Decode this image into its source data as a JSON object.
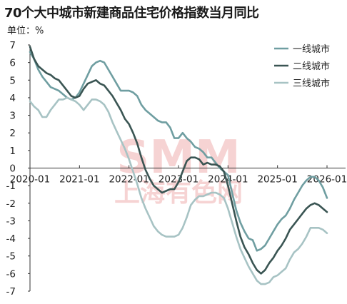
{
  "chart_data": {
    "type": "line",
    "title": "70个大中城市新建商品住宅价格指数当月同比",
    "unit_label": "单位：%",
    "xlabel": "",
    "ylabel": "",
    "ylim": [
      -7,
      7
    ],
    "y_ticks": [
      7,
      6,
      5,
      4,
      3,
      2,
      1,
      0,
      -1,
      -2,
      -3,
      -4,
      -5,
      -6,
      -7
    ],
    "x_ticks": [
      "2020-01",
      "2021-01",
      "2022-01",
      "2023-01",
      "2024-01",
      "2025-01",
      "2026-01"
    ],
    "grid": false,
    "legend_position": "top-right",
    "watermark": {
      "top": "SMM",
      "bottom": "上海有色网"
    },
    "series": [
      {
        "name": "一线城市",
        "color": "#6f9ea1",
        "values": [
          {
            "x": "2020-01",
            "y": 6.6
          },
          {
            "x": "2020-02",
            "y": 6.2
          },
          {
            "x": "2020-03",
            "y": 5.6
          },
          {
            "x": "2020-04",
            "y": 5.2
          },
          {
            "x": "2020-05",
            "y": 4.9
          },
          {
            "x": "2020-06",
            "y": 4.6
          },
          {
            "x": "2020-07",
            "y": 4.5
          },
          {
            "x": "2020-08",
            "y": 4.4
          },
          {
            "x": "2020-09",
            "y": 4.2
          },
          {
            "x": "2020-10",
            "y": 4.0
          },
          {
            "x": "2020-11",
            "y": 3.9
          },
          {
            "x": "2020-12",
            "y": 4.0
          },
          {
            "x": "2021-01",
            "y": 4.3
          },
          {
            "x": "2021-02",
            "y": 4.8
          },
          {
            "x": "2021-03",
            "y": 5.3
          },
          {
            "x": "2021-04",
            "y": 5.8
          },
          {
            "x": "2021-05",
            "y": 6.0
          },
          {
            "x": "2021-06",
            "y": 6.1
          },
          {
            "x": "2021-07",
            "y": 6.0
          },
          {
            "x": "2021-08",
            "y": 5.6
          },
          {
            "x": "2021-09",
            "y": 5.2
          },
          {
            "x": "2021-10",
            "y": 4.8
          },
          {
            "x": "2021-11",
            "y": 4.4
          },
          {
            "x": "2021-12",
            "y": 4.4
          },
          {
            "x": "2022-01",
            "y": 4.4
          },
          {
            "x": "2022-02",
            "y": 4.3
          },
          {
            "x": "2022-03",
            "y": 4.1
          },
          {
            "x": "2022-04",
            "y": 3.6
          },
          {
            "x": "2022-05",
            "y": 3.3
          },
          {
            "x": "2022-06",
            "y": 3.1
          },
          {
            "x": "2022-07",
            "y": 2.9
          },
          {
            "x": "2022-08",
            "y": 2.7
          },
          {
            "x": "2022-09",
            "y": 2.6
          },
          {
            "x": "2022-10",
            "y": 2.6
          },
          {
            "x": "2022-11",
            "y": 2.3
          },
          {
            "x": "2022-12",
            "y": 1.7
          },
          {
            "x": "2023-01",
            "y": 1.7
          },
          {
            "x": "2023-02",
            "y": 2.0
          },
          {
            "x": "2023-03",
            "y": 1.7
          },
          {
            "x": "2023-04",
            "y": 1.5
          },
          {
            "x": "2023-05",
            "y": 1.2
          },
          {
            "x": "2023-06",
            "y": 1.1
          },
          {
            "x": "2023-07",
            "y": 0.9
          },
          {
            "x": "2023-08",
            "y": 0.6
          },
          {
            "x": "2023-09",
            "y": 0.6
          },
          {
            "x": "2023-10",
            "y": 0.3
          },
          {
            "x": "2023-11",
            "y": 0.0
          },
          {
            "x": "2023-12",
            "y": -0.2
          },
          {
            "x": "2024-01",
            "y": -0.4
          },
          {
            "x": "2024-02",
            "y": -1.4
          },
          {
            "x": "2024-03",
            "y": -2.4
          },
          {
            "x": "2024-04",
            "y": -3.1
          },
          {
            "x": "2024-05",
            "y": -3.6
          },
          {
            "x": "2024-06",
            "y": -4.0
          },
          {
            "x": "2024-07",
            "y": -4.1
          },
          {
            "x": "2024-08",
            "y": -4.7
          },
          {
            "x": "2024-09",
            "y": -4.6
          },
          {
            "x": "2024-10",
            "y": -4.4
          },
          {
            "x": "2024-11",
            "y": -4.0
          },
          {
            "x": "2024-12",
            "y": -3.6
          },
          {
            "x": "2025-01",
            "y": -3.2
          },
          {
            "x": "2025-02",
            "y": -2.9
          },
          {
            "x": "2025-03",
            "y": -2.7
          },
          {
            "x": "2025-04",
            "y": -2.3
          },
          {
            "x": "2025-05",
            "y": -1.8
          },
          {
            "x": "2025-06",
            "y": -1.4
          },
          {
            "x": "2025-07",
            "y": -1.0
          },
          {
            "x": "2025-08",
            "y": -0.7
          },
          {
            "x": "2025-09",
            "y": -0.5
          },
          {
            "x": "2025-10",
            "y": -0.5
          },
          {
            "x": "2025-11",
            "y": -0.7
          },
          {
            "x": "2025-12",
            "y": -1.1
          },
          {
            "x": "2026-01",
            "y": -1.7
          }
        ]
      },
      {
        "name": "二线城市",
        "color": "#3a5553",
        "values": [
          {
            "x": "2020-01",
            "y": 6.9
          },
          {
            "x": "2020-02",
            "y": 6.2
          },
          {
            "x": "2020-03",
            "y": 5.8
          },
          {
            "x": "2020-04",
            "y": 5.6
          },
          {
            "x": "2020-05",
            "y": 5.4
          },
          {
            "x": "2020-06",
            "y": 5.3
          },
          {
            "x": "2020-07",
            "y": 5.1
          },
          {
            "x": "2020-08",
            "y": 5.0
          },
          {
            "x": "2020-09",
            "y": 4.7
          },
          {
            "x": "2020-10",
            "y": 4.4
          },
          {
            "x": "2020-11",
            "y": 4.1
          },
          {
            "x": "2020-12",
            "y": 4.0
          },
          {
            "x": "2021-01",
            "y": 4.1
          },
          {
            "x": "2021-02",
            "y": 4.5
          },
          {
            "x": "2021-03",
            "y": 4.8
          },
          {
            "x": "2021-04",
            "y": 4.9
          },
          {
            "x": "2021-05",
            "y": 5.0
          },
          {
            "x": "2021-06",
            "y": 4.8
          },
          {
            "x": "2021-07",
            "y": 4.7
          },
          {
            "x": "2021-08",
            "y": 4.4
          },
          {
            "x": "2021-09",
            "y": 4.1
          },
          {
            "x": "2021-10",
            "y": 3.7
          },
          {
            "x": "2021-11",
            "y": 3.3
          },
          {
            "x": "2021-12",
            "y": 2.8
          },
          {
            "x": "2022-01",
            "y": 2.5
          },
          {
            "x": "2022-02",
            "y": 2.0
          },
          {
            "x": "2022-03",
            "y": 1.4
          },
          {
            "x": "2022-04",
            "y": 0.6
          },
          {
            "x": "2022-05",
            "y": -0.1
          },
          {
            "x": "2022-06",
            "y": -0.6
          },
          {
            "x": "2022-07",
            "y": -1.0
          },
          {
            "x": "2022-08",
            "y": -1.2
          },
          {
            "x": "2022-09",
            "y": -1.4
          },
          {
            "x": "2022-10",
            "y": -1.3
          },
          {
            "x": "2022-11",
            "y": -1.2
          },
          {
            "x": "2022-12",
            "y": -1.2
          },
          {
            "x": "2023-01",
            "y": -0.8
          },
          {
            "x": "2023-02",
            "y": -0.2
          },
          {
            "x": "2023-03",
            "y": 0.4
          },
          {
            "x": "2023-04",
            "y": 0.6
          },
          {
            "x": "2023-05",
            "y": 0.6
          },
          {
            "x": "2023-06",
            "y": 0.5
          },
          {
            "x": "2023-07",
            "y": 0.2
          },
          {
            "x": "2023-08",
            "y": 0.3
          },
          {
            "x": "2023-09",
            "y": 0.2
          },
          {
            "x": "2023-10",
            "y": 0.2
          },
          {
            "x": "2023-11",
            "y": 0.1
          },
          {
            "x": "2023-12",
            "y": -0.2
          },
          {
            "x": "2024-01",
            "y": -1.0
          },
          {
            "x": "2024-02",
            "y": -2.0
          },
          {
            "x": "2024-03",
            "y": -3.0
          },
          {
            "x": "2024-04",
            "y": -3.9
          },
          {
            "x": "2024-05",
            "y": -4.5
          },
          {
            "x": "2024-06",
            "y": -4.9
          },
          {
            "x": "2024-07",
            "y": -5.4
          },
          {
            "x": "2024-08",
            "y": -5.8
          },
          {
            "x": "2024-09",
            "y": -6.0
          },
          {
            "x": "2024-10",
            "y": -5.8
          },
          {
            "x": "2024-11",
            "y": -5.4
          },
          {
            "x": "2024-12",
            "y": -5.1
          },
          {
            "x": "2025-01",
            "y": -4.7
          },
          {
            "x": "2025-02",
            "y": -4.4
          },
          {
            "x": "2025-03",
            "y": -4.0
          },
          {
            "x": "2025-04",
            "y": -3.5
          },
          {
            "x": "2025-05",
            "y": -3.2
          },
          {
            "x": "2025-06",
            "y": -2.9
          },
          {
            "x": "2025-07",
            "y": -2.6
          },
          {
            "x": "2025-08",
            "y": -2.3
          },
          {
            "x": "2025-09",
            "y": -2.1
          },
          {
            "x": "2025-10",
            "y": -2.0
          },
          {
            "x": "2025-11",
            "y": -2.1
          },
          {
            "x": "2025-12",
            "y": -2.3
          },
          {
            "x": "2026-01",
            "y": -2.5
          }
        ]
      },
      {
        "name": "三线城市",
        "color": "#a7c3c4",
        "values": [
          {
            "x": "2020-01",
            "y": 3.8
          },
          {
            "x": "2020-02",
            "y": 3.5
          },
          {
            "x": "2020-03",
            "y": 3.3
          },
          {
            "x": "2020-04",
            "y": 2.9
          },
          {
            "x": "2020-05",
            "y": 2.9
          },
          {
            "x": "2020-06",
            "y": 3.3
          },
          {
            "x": "2020-07",
            "y": 3.6
          },
          {
            "x": "2020-08",
            "y": 3.9
          },
          {
            "x": "2020-09",
            "y": 3.9
          },
          {
            "x": "2020-10",
            "y": 4.0
          },
          {
            "x": "2020-11",
            "y": 3.9
          },
          {
            "x": "2020-12",
            "y": 3.8
          },
          {
            "x": "2021-01",
            "y": 3.6
          },
          {
            "x": "2021-02",
            "y": 3.3
          },
          {
            "x": "2021-03",
            "y": 3.6
          },
          {
            "x": "2021-04",
            "y": 3.9
          },
          {
            "x": "2021-05",
            "y": 3.9
          },
          {
            "x": "2021-06",
            "y": 3.8
          },
          {
            "x": "2021-07",
            "y": 3.6
          },
          {
            "x": "2021-08",
            "y": 3.2
          },
          {
            "x": "2021-09",
            "y": 2.6
          },
          {
            "x": "2021-10",
            "y": 2.1
          },
          {
            "x": "2021-11",
            "y": 1.6
          },
          {
            "x": "2021-12",
            "y": 1.1
          },
          {
            "x": "2022-01",
            "y": 0.5
          },
          {
            "x": "2022-02",
            "y": -0.2
          },
          {
            "x": "2022-03",
            "y": -0.9
          },
          {
            "x": "2022-04",
            "y": -1.7
          },
          {
            "x": "2022-05",
            "y": -2.3
          },
          {
            "x": "2022-06",
            "y": -2.8
          },
          {
            "x": "2022-07",
            "y": -3.3
          },
          {
            "x": "2022-08",
            "y": -3.6
          },
          {
            "x": "2022-09",
            "y": -3.8
          },
          {
            "x": "2022-10",
            "y": -3.9
          },
          {
            "x": "2022-11",
            "y": -3.9
          },
          {
            "x": "2022-12",
            "y": -3.9
          },
          {
            "x": "2023-01",
            "y": -3.8
          },
          {
            "x": "2023-02",
            "y": -3.4
          },
          {
            "x": "2023-03",
            "y": -2.8
          },
          {
            "x": "2023-04",
            "y": -2.1
          },
          {
            "x": "2023-05",
            "y": -1.8
          },
          {
            "x": "2023-06",
            "y": -1.6
          },
          {
            "x": "2023-07",
            "y": -1.6
          },
          {
            "x": "2023-08",
            "y": -1.5
          },
          {
            "x": "2023-09",
            "y": -1.4
          },
          {
            "x": "2023-10",
            "y": -1.4
          },
          {
            "x": "2023-11",
            "y": -1.5
          },
          {
            "x": "2023-12",
            "y": -1.7
          },
          {
            "x": "2024-01",
            "y": -2.3
          },
          {
            "x": "2024-02",
            "y": -3.1
          },
          {
            "x": "2024-03",
            "y": -3.9
          },
          {
            "x": "2024-04",
            "y": -4.6
          },
          {
            "x": "2024-05",
            "y": -5.1
          },
          {
            "x": "2024-06",
            "y": -5.6
          },
          {
            "x": "2024-07",
            "y": -6.0
          },
          {
            "x": "2024-08",
            "y": -6.4
          },
          {
            "x": "2024-09",
            "y": -6.6
          },
          {
            "x": "2024-10",
            "y": -6.6
          },
          {
            "x": "2024-11",
            "y": -6.5
          },
          {
            "x": "2024-12",
            "y": -6.2
          },
          {
            "x": "2025-01",
            "y": -6.1
          },
          {
            "x": "2025-02",
            "y": -5.9
          },
          {
            "x": "2025-03",
            "y": -5.7
          },
          {
            "x": "2025-04",
            "y": -5.2
          },
          {
            "x": "2025-05",
            "y": -4.8
          },
          {
            "x": "2025-06",
            "y": -4.6
          },
          {
            "x": "2025-07",
            "y": -4.3
          },
          {
            "x": "2025-08",
            "y": -3.9
          },
          {
            "x": "2025-09",
            "y": -3.4
          },
          {
            "x": "2025-10",
            "y": -3.4
          },
          {
            "x": "2025-11",
            "y": -3.4
          },
          {
            "x": "2025-12",
            "y": -3.5
          },
          {
            "x": "2026-01",
            "y": -3.7
          }
        ]
      }
    ]
  }
}
